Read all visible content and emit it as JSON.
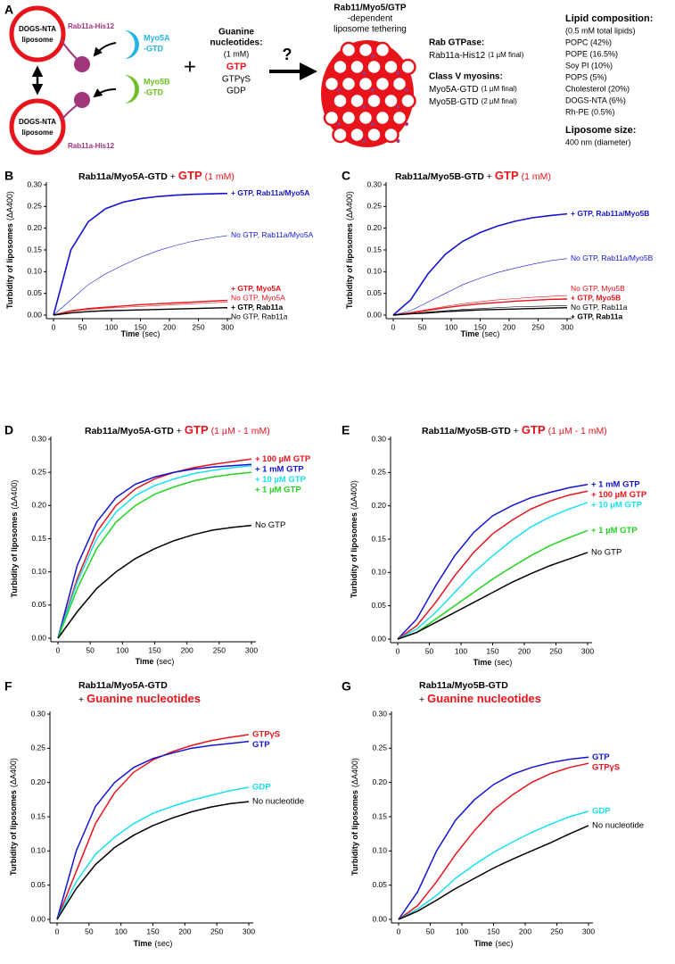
{
  "panel_a": {
    "panel": "A",
    "liposome_label": [
      "DOGS-NTA",
      "liposome"
    ],
    "rab_label": "Rab11a-His12",
    "myo5a": [
      "Myo5A",
      "-GTD"
    ],
    "myo5b": [
      "Myo5B",
      "-GTD"
    ],
    "plus": "+",
    "nucleotides_title": [
      "Guanine",
      "nucleotides:"
    ],
    "nucleotides_conc": "(1 mM)",
    "nucleotides": [
      "GTP",
      "GTPγS",
      "GDP"
    ],
    "question": "?",
    "result": [
      "Rab11/Myo5/GTP",
      "-dependent",
      "liposome tethering"
    ],
    "rab_heading": "Rab GTPase:",
    "rab_item": "Rab11a-His12",
    "rab_conc": "(1 µM final)",
    "myosin_heading": "Class V myosins:",
    "myosin_items": [
      {
        "name": "Myo5A-GTD",
        "conc": "(1 µM final)"
      },
      {
        "name": "Myo5B-GTD",
        "conc": "(2 µM final)"
      }
    ],
    "lipid_heading": "Lipid composition:",
    "lipid_total": "(0.5 mM total lipids)",
    "lipids": [
      "POPC (42%)",
      "POPE (16.5%)",
      "Soy PI (10%)",
      "POPS (5%)",
      "Cholesterol (20%)",
      "DOGS-NTA (6%)",
      "Rh-PE (0.5%)"
    ],
    "size_heading": "Liposome size:",
    "size": "400 nm (diameter)"
  },
  "chart_data": [
    {
      "type": "line",
      "panel": "B",
      "title": "Rab11a/Myo5A-GTD",
      "title_plus": "+",
      "title_highlight": "GTP",
      "title_note": "(1 mM)",
      "x_label": "Time",
      "x_unit": "(sec)",
      "y_label": "Turbidity of liposomes",
      "y_unit": "(ΔA400)",
      "xlim": [
        0,
        300
      ],
      "xticks": [
        0,
        50,
        100,
        150,
        200,
        250,
        300
      ],
      "ylim": [
        0,
        0.3
      ],
      "yticks": [
        {
          "value": 0,
          "label": "0.00"
        },
        0.05,
        {
          "value": 0.1,
          "label": "0.10"
        },
        0.15,
        {
          "value": 0.2,
          "label": "0.20"
        },
        0.25,
        {
          "value": 0.3,
          "label": "0.30"
        }
      ],
      "x": [
        0,
        30,
        60,
        90,
        120,
        150,
        180,
        210,
        240,
        270,
        300
      ],
      "series": [
        {
          "name": "+ GTP, Rab11a/Myo5A",
          "color": "#1414d2",
          "width": 1.6,
          "label_weight": "bold",
          "values": [
            0,
            0.15,
            0.215,
            0.245,
            0.26,
            0.268,
            0.273,
            0.276,
            0.278,
            0.279,
            0.28
          ]
        },
        {
          "name": "No GTP, Rab11a/Myo5A",
          "color": "#1414d2",
          "width": 0.6,
          "label_weight": "normal",
          "values": [
            0,
            0.035,
            0.07,
            0.095,
            0.115,
            0.133,
            0.148,
            0.16,
            0.17,
            0.177,
            0.183
          ]
        },
        {
          "name": "+ GTP, Myo5A",
          "color": "#e8141b",
          "width": 1.4,
          "label_weight": "bold",
          "values": [
            0,
            0.01,
            0.015,
            0.018,
            0.021,
            0.024,
            0.026,
            0.028,
            0.03,
            0.032,
            0.034
          ]
        },
        {
          "name": "No GTP, Myo5A",
          "color": "#e8141b",
          "width": 0.6,
          "label_weight": "normal",
          "values": [
            0,
            0.008,
            0.013,
            0.016,
            0.018,
            0.02,
            0.022,
            0.024,
            0.026,
            0.028,
            0.03
          ]
        },
        {
          "name": "+ GTP, Rab11a",
          "color": "#000000",
          "width": 1.4,
          "label_weight": "bold",
          "values": [
            0,
            0.005,
            0.008,
            0.01,
            0.011,
            0.012,
            0.013,
            0.014,
            0.015,
            0.016,
            0.017
          ]
        },
        {
          "name": "No GTP, Rab11a",
          "color": "#000000",
          "width": 0.6,
          "label_weight": "normal",
          "values": [
            0,
            0.005,
            0.008,
            0.01,
            0.011,
            0.012,
            0.013,
            0.014,
            0.015,
            0.016,
            0.016
          ]
        }
      ]
    },
    {
      "type": "line",
      "panel": "C",
      "title": "Rab11a/Myo5B-GTD",
      "title_plus": "+",
      "title_highlight": "GTP",
      "title_note": "(1 mM)",
      "x_label": "Time",
      "x_unit": "(sec)",
      "y_label": "Turbidity of liposomes",
      "y_unit": "(ΔA400)",
      "xlim": [
        0,
        300
      ],
      "xticks": [
        0,
        50,
        100,
        150,
        200,
        250,
        300
      ],
      "ylim": [
        0,
        0.3
      ],
      "yticks": [
        {
          "value": 0,
          "label": "0.00"
        },
        0.05,
        {
          "value": 0.1,
          "label": "0.10"
        },
        0.15,
        {
          "value": 0.2,
          "label": "0.20"
        },
        0.25,
        {
          "value": 0.3,
          "label": "0.30"
        }
      ],
      "x": [
        0,
        30,
        60,
        90,
        120,
        150,
        180,
        210,
        240,
        270,
        300
      ],
      "series": [
        {
          "name": "+ GTP, Rab11a/Myo5B",
          "color": "#1414d2",
          "width": 1.6,
          "label_weight": "bold",
          "values": [
            0,
            0.035,
            0.095,
            0.14,
            0.17,
            0.19,
            0.205,
            0.216,
            0.224,
            0.229,
            0.233
          ]
        },
        {
          "name": "No GTP, Rab11a/Myo5B",
          "color": "#1414d2",
          "width": 0.6,
          "label_weight": "normal",
          "values": [
            0,
            0.01,
            0.03,
            0.05,
            0.07,
            0.085,
            0.098,
            0.108,
            0.117,
            0.125,
            0.13
          ]
        },
        {
          "name": "No GTP, Myo5B",
          "color": "#e8141b",
          "width": 0.6,
          "label_weight": "normal",
          "values": [
            0,
            0.006,
            0.013,
            0.02,
            0.026,
            0.031,
            0.035,
            0.038,
            0.041,
            0.043,
            0.045
          ]
        },
        {
          "name": "+ GTP, Myo5B",
          "color": "#e8141b",
          "width": 1.4,
          "label_weight": "bold",
          "values": [
            0,
            0.005,
            0.011,
            0.017,
            0.022,
            0.026,
            0.029,
            0.032,
            0.034,
            0.036,
            0.037
          ]
        },
        {
          "name": "No GTP, Rab11a",
          "color": "#000000",
          "width": 0.6,
          "label_weight": "normal",
          "values": [
            0,
            0.003,
            0.007,
            0.01,
            0.013,
            0.015,
            0.017,
            0.019,
            0.02,
            0.021,
            0.022
          ]
        },
        {
          "name": "+ GTP, Rab11a",
          "color": "#000000",
          "width": 1.4,
          "label_weight": "bold",
          "values": [
            0,
            0.003,
            0.005,
            0.008,
            0.01,
            0.012,
            0.013,
            0.014,
            0.015,
            0.016,
            0.017
          ]
        }
      ]
    },
    {
      "type": "line",
      "panel": "D",
      "title": "Rab11a/Myo5A-GTD",
      "title_plus": "+",
      "title_highlight": "GTP",
      "title_note": "(1 µM - 1 mM)",
      "x_label": "Time",
      "x_unit": "(sec)",
      "y_label": "Turbidity of liposomes",
      "y_unit": "(ΔA400)",
      "xlim": [
        0,
        300
      ],
      "xticks": [
        0,
        50,
        100,
        150,
        200,
        250,
        300
      ],
      "ylim": [
        0,
        0.3
      ],
      "yticks": [
        {
          "value": 0,
          "label": "0.00"
        },
        0.05,
        {
          "value": 0.1,
          "label": "0.10"
        },
        0.15,
        {
          "value": 0.2,
          "label": "0.20"
        },
        0.25,
        {
          "value": 0.3,
          "label": "0.30"
        }
      ],
      "x": [
        0,
        30,
        60,
        90,
        120,
        150,
        180,
        210,
        240,
        270,
        300
      ],
      "series": [
        {
          "name": "+ 100 µM GTP",
          "color": "#e8141b",
          "width": 1.5,
          "label_weight": "bold",
          "values": [
            0,
            0.09,
            0.16,
            0.2,
            0.225,
            0.24,
            0.25,
            0.257,
            0.262,
            0.266,
            0.27
          ]
        },
        {
          "name": "+ 1 mM GTP",
          "color": "#1414d2",
          "width": 1.5,
          "label_weight": "bold",
          "values": [
            0,
            0.11,
            0.175,
            0.212,
            0.232,
            0.243,
            0.25,
            0.255,
            0.258,
            0.26,
            0.262
          ]
        },
        {
          "name": "+ 10 µM GTP",
          "color": "#19e0ef",
          "width": 1.5,
          "label_weight": "bold",
          "values": [
            0,
            0.085,
            0.15,
            0.19,
            0.215,
            0.23,
            0.24,
            0.248,
            0.253,
            0.257,
            0.26
          ]
        },
        {
          "name": "+ 1 µM GTP",
          "color": "#22d420",
          "width": 1.5,
          "label_weight": "bold",
          "values": [
            0,
            0.075,
            0.135,
            0.175,
            0.2,
            0.217,
            0.228,
            0.237,
            0.243,
            0.247,
            0.25
          ]
        },
        {
          "name": "No GTP",
          "color": "#000000",
          "width": 1.5,
          "label_weight": "normal",
          "values": [
            0,
            0.04,
            0.075,
            0.1,
            0.12,
            0.135,
            0.147,
            0.156,
            0.163,
            0.167,
            0.17
          ]
        }
      ]
    },
    {
      "type": "line",
      "panel": "E",
      "title": "Rab11a/Myo5B-GTD",
      "title_plus": "+",
      "title_highlight": "GTP",
      "title_note": "(1 µM - 1 mM)",
      "x_label": "Time",
      "x_unit": "(sec)",
      "y_label": "Turbidity of liposomes",
      "y_unit": "(ΔA400)",
      "xlim": [
        0,
        300
      ],
      "xticks": [
        0,
        50,
        100,
        150,
        200,
        250,
        300
      ],
      "ylim": [
        0,
        0.3
      ],
      "yticks": [
        {
          "value": 0,
          "label": "0.00"
        },
        0.05,
        {
          "value": 0.1,
          "label": "0.10"
        },
        0.15,
        {
          "value": 0.2,
          "label": "0.20"
        },
        0.25,
        {
          "value": 0.3,
          "label": "0.30"
        }
      ],
      "x": [
        0,
        30,
        60,
        90,
        120,
        150,
        180,
        210,
        240,
        270,
        300
      ],
      "series": [
        {
          "name": "+ 1 mM GTP",
          "color": "#1414d2",
          "width": 1.5,
          "label_weight": "bold",
          "values": [
            0,
            0.03,
            0.08,
            0.125,
            0.16,
            0.185,
            0.2,
            0.212,
            0.22,
            0.227,
            0.232
          ]
        },
        {
          "name": "+ 100 µM GTP",
          "color": "#e8141b",
          "width": 1.5,
          "label_weight": "bold",
          "values": [
            0,
            0.02,
            0.055,
            0.095,
            0.13,
            0.158,
            0.178,
            0.195,
            0.207,
            0.216,
            0.222
          ]
        },
        {
          "name": "+ 10 µM GTP",
          "color": "#19e0ef",
          "width": 1.5,
          "label_weight": "bold",
          "values": [
            0,
            0.015,
            0.04,
            0.07,
            0.1,
            0.125,
            0.148,
            0.168,
            0.183,
            0.195,
            0.205
          ]
        },
        {
          "name": "+ 1 µM GTP",
          "color": "#22d420",
          "width": 1.5,
          "label_weight": "bold",
          "values": [
            0,
            0.01,
            0.03,
            0.05,
            0.07,
            0.09,
            0.108,
            0.125,
            0.14,
            0.152,
            0.163
          ]
        },
        {
          "name": "No GTP",
          "color": "#000000",
          "width": 1.5,
          "label_weight": "normal",
          "values": [
            0,
            0.01,
            0.025,
            0.04,
            0.055,
            0.07,
            0.085,
            0.098,
            0.11,
            0.12,
            0.13
          ]
        }
      ]
    },
    {
      "type": "line",
      "panel": "F",
      "title": "Rab11a/Myo5A-GTD",
      "title_plus": "+",
      "title_highlight": "Guanine nucleotides",
      "x_label": "Time",
      "x_unit": "(sec)",
      "y_label": "Turbidity of liposomes",
      "y_unit": "(ΔA400)",
      "xlim": [
        0,
        300
      ],
      "xticks": [
        0,
        50,
        100,
        150,
        200,
        250,
        300
      ],
      "ylim": [
        0,
        0.3
      ],
      "yticks": [
        {
          "value": 0,
          "label": "0.00"
        },
        0.05,
        {
          "value": 0.1,
          "label": "0.10"
        },
        0.15,
        {
          "value": 0.2,
          "label": "0.20"
        },
        0.25,
        {
          "value": 0.3,
          "label": "0.30"
        }
      ],
      "x": [
        0,
        30,
        60,
        90,
        120,
        150,
        180,
        210,
        240,
        270,
        300
      ],
      "series": [
        {
          "name": "GTPγS",
          "color": "#e8141b",
          "width": 1.5,
          "label_weight": "bold",
          "values": [
            0,
            0.07,
            0.14,
            0.185,
            0.215,
            0.233,
            0.245,
            0.254,
            0.261,
            0.266,
            0.27
          ]
        },
        {
          "name": "GTP",
          "color": "#1414d2",
          "width": 1.5,
          "label_weight": "bold",
          "values": [
            0,
            0.1,
            0.165,
            0.2,
            0.222,
            0.235,
            0.243,
            0.25,
            0.254,
            0.257,
            0.26
          ]
        },
        {
          "name": "GDP",
          "color": "#19e0ef",
          "width": 1.5,
          "label_weight": "bold",
          "values": [
            0,
            0.055,
            0.095,
            0.12,
            0.14,
            0.155,
            0.165,
            0.174,
            0.181,
            0.188,
            0.193
          ]
        },
        {
          "name": "No nucleotide",
          "color": "#000000",
          "width": 1.5,
          "label_weight": "normal",
          "values": [
            0,
            0.045,
            0.08,
            0.105,
            0.123,
            0.137,
            0.148,
            0.157,
            0.164,
            0.169,
            0.172
          ]
        }
      ]
    },
    {
      "type": "line",
      "panel": "G",
      "title": "Rab11a/Myo5B-GTD",
      "title_plus": "+",
      "title_highlight": "Guanine nucleotides",
      "x_label": "Time",
      "x_unit": "(sec)",
      "y_label": "Turbidity of liposomes",
      "y_unit": "(ΔA400)",
      "xlim": [
        0,
        300
      ],
      "xticks": [
        0,
        50,
        100,
        150,
        200,
        250,
        300
      ],
      "ylim": [
        0,
        0.3
      ],
      "yticks": [
        {
          "value": 0,
          "label": "0.00"
        },
        0.05,
        {
          "value": 0.1,
          "label": "0.10"
        },
        0.15,
        {
          "value": 0.2,
          "label": "0.20"
        },
        0.25,
        {
          "value": 0.3,
          "label": "0.30"
        }
      ],
      "x": [
        0,
        30,
        60,
        90,
        120,
        150,
        180,
        210,
        240,
        270,
        300
      ],
      "series": [
        {
          "name": "GTP",
          "color": "#1414d2",
          "width": 1.5,
          "label_weight": "bold",
          "values": [
            0,
            0.04,
            0.1,
            0.145,
            0.175,
            0.197,
            0.212,
            0.222,
            0.229,
            0.234,
            0.237
          ]
        },
        {
          "name": "GTPγS",
          "color": "#e8141b",
          "width": 1.5,
          "label_weight": "bold",
          "values": [
            0,
            0.02,
            0.055,
            0.095,
            0.13,
            0.16,
            0.182,
            0.2,
            0.213,
            0.222,
            0.228
          ]
        },
        {
          "name": "GDP",
          "color": "#19e0ef",
          "width": 1.5,
          "label_weight": "bold",
          "values": [
            0,
            0.015,
            0.035,
            0.06,
            0.08,
            0.098,
            0.113,
            0.127,
            0.139,
            0.15,
            0.158
          ]
        },
        {
          "name": "No nucleotide",
          "color": "#000000",
          "width": 1.5,
          "label_weight": "normal",
          "values": [
            0,
            0.012,
            0.028,
            0.045,
            0.06,
            0.075,
            0.088,
            0.1,
            0.112,
            0.125,
            0.137
          ]
        }
      ]
    }
  ]
}
